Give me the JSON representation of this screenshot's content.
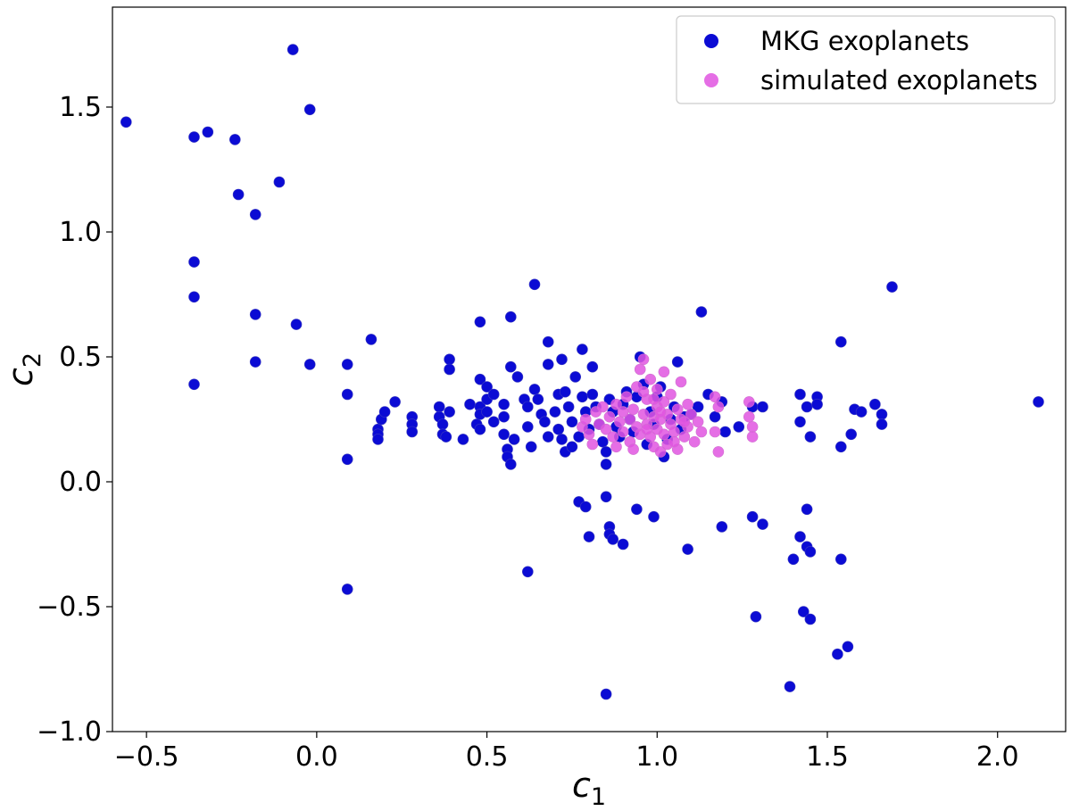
{
  "chart_data": {
    "type": "scatter",
    "title": "",
    "xlabel": {
      "base": "c",
      "sub": "1"
    },
    "ylabel": {
      "base": "c",
      "sub": "2"
    },
    "xlim": [
      -0.6,
      2.2
    ],
    "ylim": [
      -1.0,
      1.9
    ],
    "x_ticks": [
      -0.5,
      0.0,
      0.5,
      1.0,
      1.5,
      2.0
    ],
    "x_tick_labels": [
      "−0.5",
      "0.0",
      "0.5",
      "1.0",
      "1.5",
      "2.0"
    ],
    "y_ticks": [
      -1.0,
      -0.5,
      0.0,
      0.5,
      1.0,
      1.5
    ],
    "y_tick_labels": [
      "−1.0",
      "−0.5",
      "0.0",
      "0.5",
      "1.0",
      "1.5"
    ],
    "grid": false,
    "legend_position": "top-right",
    "series": [
      {
        "name": "MKG exoplanets",
        "color": "#0b0bd4",
        "points": [
          [
            -0.56,
            1.44
          ],
          [
            -0.36,
            1.38
          ],
          [
            -0.32,
            1.4
          ],
          [
            -0.24,
            1.37
          ],
          [
            -0.23,
            1.15
          ],
          [
            -0.11,
            1.2
          ],
          [
            -0.18,
            1.07
          ],
          [
            -0.07,
            1.73
          ],
          [
            -0.02,
            1.49
          ],
          [
            -0.36,
            0.88
          ],
          [
            -0.36,
            0.74
          ],
          [
            -0.36,
            0.39
          ],
          [
            -0.18,
            0.67
          ],
          [
            -0.18,
            0.48
          ],
          [
            -0.06,
            0.63
          ],
          [
            -0.02,
            0.47
          ],
          [
            0.09,
            0.47
          ],
          [
            0.09,
            0.35
          ],
          [
            0.09,
            0.09
          ],
          [
            0.09,
            -0.43
          ],
          [
            0.16,
            0.57
          ],
          [
            0.18,
            0.21
          ],
          [
            0.18,
            0.19
          ],
          [
            0.18,
            0.17
          ],
          [
            0.19,
            0.25
          ],
          [
            0.2,
            0.28
          ],
          [
            0.23,
            0.32
          ],
          [
            0.28,
            0.26
          ],
          [
            0.28,
            0.23
          ],
          [
            0.28,
            0.2
          ],
          [
            0.36,
            0.3
          ],
          [
            0.36,
            0.26
          ],
          [
            0.37,
            0.23
          ],
          [
            0.37,
            0.19
          ],
          [
            0.38,
            0.18
          ],
          [
            0.39,
            0.28
          ],
          [
            0.39,
            0.49
          ],
          [
            0.39,
            0.45
          ],
          [
            0.43,
            0.17
          ],
          [
            0.45,
            0.31
          ],
          [
            0.47,
            0.23
          ],
          [
            0.48,
            0.3
          ],
          [
            0.48,
            0.27
          ],
          [
            0.48,
            0.64
          ],
          [
            0.48,
            0.41
          ],
          [
            0.48,
            0.21
          ],
          [
            0.5,
            0.38
          ],
          [
            0.5,
            0.33
          ],
          [
            0.5,
            0.28
          ],
          [
            0.52,
            0.24
          ],
          [
            0.52,
            0.35
          ],
          [
            0.55,
            0.31
          ],
          [
            0.55,
            0.26
          ],
          [
            0.55,
            0.19
          ],
          [
            0.56,
            0.13
          ],
          [
            0.56,
            0.1
          ],
          [
            0.57,
            0.46
          ],
          [
            0.57,
            0.07
          ],
          [
            0.57,
            0.66
          ],
          [
            0.58,
            0.17
          ],
          [
            0.59,
            0.42
          ],
          [
            0.61,
            0.33
          ],
          [
            0.62,
            0.3
          ],
          [
            0.62,
            0.22
          ],
          [
            0.63,
            0.14
          ],
          [
            0.64,
            0.37
          ],
          [
            0.64,
            0.79
          ],
          [
            0.65,
            0.33
          ],
          [
            0.66,
            0.27
          ],
          [
            0.67,
            0.24
          ],
          [
            0.68,
            0.56
          ],
          [
            0.68,
            0.47
          ],
          [
            0.68,
            0.18
          ],
          [
            0.7,
            0.28
          ],
          [
            0.71,
            0.21
          ],
          [
            0.71,
            0.35
          ],
          [
            0.72,
            0.49
          ],
          [
            0.72,
            0.17
          ],
          [
            0.73,
            0.12
          ],
          [
            0.73,
            0.36
          ],
          [
            0.74,
            0.3
          ],
          [
            0.75,
            0.24
          ],
          [
            0.75,
            0.14
          ],
          [
            0.76,
            0.42
          ],
          [
            0.77,
            0.18
          ],
          [
            0.78,
            0.53
          ],
          [
            0.78,
            0.34
          ],
          [
            0.79,
            0.28
          ],
          [
            0.8,
            0.21
          ],
          [
            0.81,
            0.46
          ],
          [
            0.81,
            0.35
          ],
          [
            0.82,
            0.3
          ],
          [
            0.83,
            0.23
          ],
          [
            0.84,
            0.16
          ],
          [
            0.85,
            0.07
          ],
          [
            0.85,
            0.12
          ],
          [
            0.86,
            0.33
          ],
          [
            0.87,
            0.28
          ],
          [
            0.88,
            0.22
          ],
          [
            0.89,
            0.18
          ],
          [
            0.9,
            0.31
          ],
          [
            0.91,
            0.36
          ],
          [
            0.92,
            0.25
          ],
          [
            0.93,
            0.2
          ],
          [
            0.94,
            0.34
          ],
          [
            0.95,
            0.5
          ],
          [
            0.96,
            0.39
          ],
          [
            0.97,
            0.15
          ],
          [
            0.98,
            0.28
          ],
          [
            0.99,
            0.23
          ],
          [
            1.0,
            0.34
          ],
          [
            1.01,
            0.38
          ],
          [
            1.02,
            0.1
          ],
          [
            1.03,
            0.17
          ],
          [
            1.04,
            0.25
          ],
          [
            1.05,
            0.3
          ],
          [
            1.06,
            0.48
          ],
          [
            1.07,
            0.21
          ],
          [
            1.08,
            0.26
          ],
          [
            1.1,
            0.27
          ],
          [
            1.12,
            0.3
          ],
          [
            1.13,
            0.68
          ],
          [
            1.15,
            0.35
          ],
          [
            1.17,
            0.26
          ],
          [
            1.19,
            0.32
          ],
          [
            1.2,
            0.2
          ],
          [
            1.24,
            0.22
          ],
          [
            1.28,
            0.3
          ],
          [
            1.31,
            0.3
          ],
          [
            1.42,
            0.35
          ],
          [
            1.42,
            0.24
          ],
          [
            1.44,
            0.3
          ],
          [
            1.45,
            0.18
          ],
          [
            1.47,
            0.34
          ],
          [
            1.47,
            0.31
          ],
          [
            1.54,
            0.56
          ],
          [
            1.54,
            0.14
          ],
          [
            1.57,
            0.19
          ],
          [
            1.58,
            0.29
          ],
          [
            1.6,
            0.28
          ],
          [
            1.64,
            0.31
          ],
          [
            1.66,
            0.27
          ],
          [
            1.66,
            0.23
          ],
          [
            1.69,
            0.78
          ],
          [
            2.12,
            0.32
          ],
          [
            0.77,
            -0.08
          ],
          [
            0.79,
            -0.1
          ],
          [
            0.8,
            -0.22
          ],
          [
            0.85,
            -0.06
          ],
          [
            0.86,
            -0.18
          ],
          [
            0.86,
            -0.21
          ],
          [
            0.87,
            -0.23
          ],
          [
            0.9,
            -0.25
          ],
          [
            0.94,
            -0.11
          ],
          [
            0.99,
            -0.14
          ],
          [
            1.09,
            -0.27
          ],
          [
            1.19,
            -0.18
          ],
          [
            1.28,
            -0.14
          ],
          [
            1.29,
            -0.54
          ],
          [
            1.31,
            -0.17
          ],
          [
            1.39,
            -0.82
          ],
          [
            1.4,
            -0.31
          ],
          [
            1.42,
            -0.22
          ],
          [
            1.43,
            -0.52
          ],
          [
            1.44,
            -0.11
          ],
          [
            1.44,
            -0.26
          ],
          [
            1.45,
            -0.28
          ],
          [
            1.45,
            -0.55
          ],
          [
            1.53,
            -0.69
          ],
          [
            1.54,
            -0.31
          ],
          [
            1.56,
            -0.66
          ],
          [
            0.62,
            -0.36
          ],
          [
            0.85,
            -0.85
          ]
        ]
      },
      {
        "name": "simulated exoplanets",
        "color": "#e055e0",
        "points": [
          [
            0.78,
            0.22
          ],
          [
            0.79,
            0.25
          ],
          [
            0.8,
            0.19
          ],
          [
            0.81,
            0.15
          ],
          [
            0.82,
            0.28
          ],
          [
            0.83,
            0.23
          ],
          [
            0.84,
            0.3
          ],
          [
            0.85,
            0.21
          ],
          [
            0.86,
            0.26
          ],
          [
            0.87,
            0.18
          ],
          [
            0.88,
            0.31
          ],
          [
            0.88,
            0.14
          ],
          [
            0.89,
            0.24
          ],
          [
            0.9,
            0.28
          ],
          [
            0.9,
            0.2
          ],
          [
            0.91,
            0.34
          ],
          [
            0.92,
            0.16
          ],
          [
            0.92,
            0.25
          ],
          [
            0.93,
            0.29
          ],
          [
            0.94,
            0.22
          ],
          [
            0.94,
            0.38
          ],
          [
            0.95,
            0.19
          ],
          [
            0.95,
            0.45
          ],
          [
            0.96,
            0.27
          ],
          [
            0.96,
            0.49
          ],
          [
            0.97,
            0.23
          ],
          [
            0.97,
            0.33
          ],
          [
            0.98,
            0.18
          ],
          [
            0.98,
            0.41
          ],
          [
            0.99,
            0.26
          ],
          [
            0.99,
            0.14
          ],
          [
            1.0,
            0.3
          ],
          [
            1.0,
            0.21
          ],
          [
            1.0,
            0.37
          ],
          [
            1.01,
            0.25
          ],
          [
            1.01,
            0.12
          ],
          [
            1.02,
            0.32
          ],
          [
            1.02,
            0.19
          ],
          [
            1.02,
            0.44
          ],
          [
            1.03,
            0.27
          ],
          [
            1.03,
            0.15
          ],
          [
            1.04,
            0.23
          ],
          [
            1.04,
            0.35
          ],
          [
            1.05,
            0.2
          ],
          [
            1.06,
            0.29
          ],
          [
            1.06,
            0.13
          ],
          [
            1.07,
            0.25
          ],
          [
            1.07,
            0.4
          ],
          [
            1.08,
            0.18
          ],
          [
            1.09,
            0.31
          ],
          [
            1.09,
            0.22
          ],
          [
            1.1,
            0.27
          ],
          [
            1.11,
            0.16
          ],
          [
            1.12,
            0.24
          ],
          [
            1.13,
            0.2
          ],
          [
            1.17,
            0.34
          ],
          [
            1.17,
            0.2
          ],
          [
            1.18,
            0.12
          ],
          [
            1.18,
            0.3
          ],
          [
            1.27,
            0.32
          ],
          [
            1.27,
            0.26
          ],
          [
            1.28,
            0.22
          ],
          [
            1.28,
            0.18
          ],
          [
            0.96,
            0.36
          ],
          [
            0.97,
            0.21
          ],
          [
            0.99,
            0.33
          ],
          [
            1.01,
            0.28
          ],
          [
            1.05,
            0.16
          ],
          [
            1.08,
            0.24
          ],
          [
            0.93,
            0.13
          ]
        ]
      }
    ]
  }
}
